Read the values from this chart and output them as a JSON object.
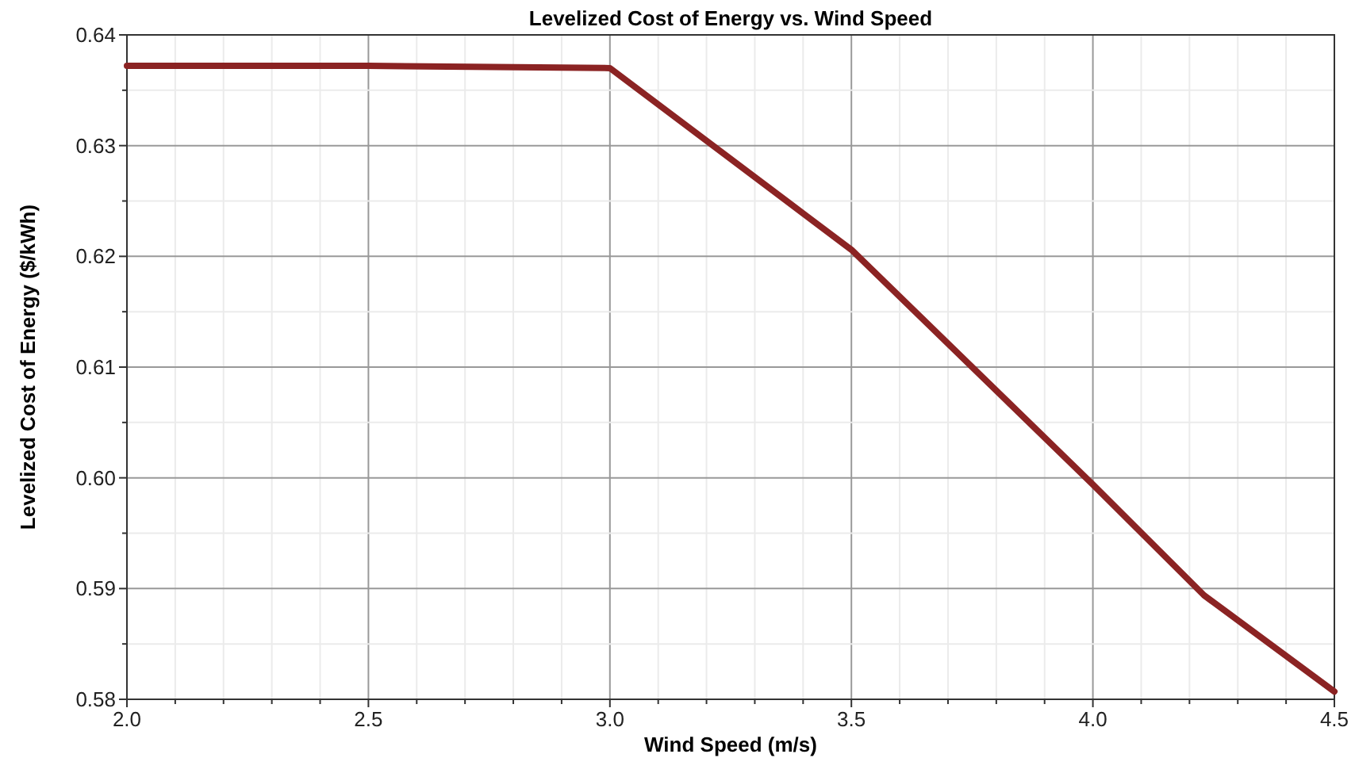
{
  "chart_data": {
    "type": "line",
    "title": "Levelized Cost of Energy vs. Wind Speed",
    "xlabel": "Wind Speed (m/s)",
    "ylabel": "Levelized Cost of Energy ($/kWh)",
    "x": [
      2.0,
      2.5,
      3.0,
      3.5,
      4.0,
      4.23,
      4.5
    ],
    "series": [
      {
        "color": "#8b2323",
        "values": [
          0.6372,
          0.6372,
          0.637,
          0.6206,
          0.5994,
          0.5894,
          0.5807
        ]
      }
    ],
    "xlim": [
      2.0,
      4.5
    ],
    "xticks": [
      {
        "value": 2.0,
        "label": "2.0"
      },
      {
        "value": 2.1,
        "label": null
      },
      {
        "value": 2.2,
        "label": null
      },
      {
        "value": 2.3,
        "label": null
      },
      {
        "value": 2.4,
        "label": null
      },
      {
        "value": 2.5,
        "label": "2.5"
      },
      {
        "value": 2.6,
        "label": null
      },
      {
        "value": 2.7,
        "label": null
      },
      {
        "value": 2.8,
        "label": null
      },
      {
        "value": 2.9,
        "label": null
      },
      {
        "value": 3.0,
        "label": "3.0"
      },
      {
        "value": 3.1,
        "label": null
      },
      {
        "value": 3.2,
        "label": null
      },
      {
        "value": 3.3,
        "label": null
      },
      {
        "value": 3.4,
        "label": null
      },
      {
        "value": 3.5,
        "label": "3.5"
      },
      {
        "value": 3.6,
        "label": null
      },
      {
        "value": 3.7,
        "label": null
      },
      {
        "value": 3.8,
        "label": null
      },
      {
        "value": 3.9,
        "label": null
      },
      {
        "value": 4.0,
        "label": "4.0"
      },
      {
        "value": 4.1,
        "label": null
      },
      {
        "value": 4.2,
        "label": null
      },
      {
        "value": 4.3,
        "label": null
      },
      {
        "value": 4.4,
        "label": null
      },
      {
        "value": 4.5,
        "label": "4.5"
      }
    ],
    "ylim": [
      0.58,
      0.64
    ],
    "yticks": [
      0.58,
      {
        "value": 0.585,
        "label": null
      },
      0.59,
      {
        "value": 0.595,
        "label": null
      },
      {
        "value": 0.6,
        "label": "0.60"
      },
      {
        "value": 0.605,
        "label": null
      },
      0.61,
      {
        "value": 0.615,
        "label": null
      },
      0.62,
      {
        "value": 0.625,
        "label": null
      },
      0.63,
      {
        "value": 0.635,
        "label": null
      },
      0.64
    ],
    "grid": true,
    "line_style": "solid",
    "marker": "none"
  }
}
